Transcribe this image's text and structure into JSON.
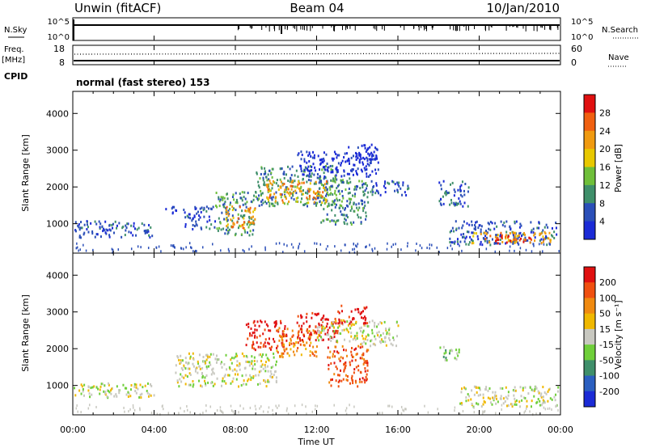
{
  "header": {
    "station": "Unwin (fitACF)",
    "beam": "Beam 04",
    "date": "10/Jan/2010"
  },
  "top_panel": {
    "nsky_label": "N.Sky",
    "nsearch_label": "N.Search",
    "left_ticks": [
      "10^5",
      "10^0"
    ],
    "right_ticks": [
      "10^5",
      "10^0"
    ]
  },
  "freq_panel": {
    "freq_label": "Freq.",
    "unit_label": "[MHz]",
    "left_ticks": [
      "18",
      "8"
    ],
    "right_ticks": [
      "60",
      "0"
    ],
    "nave_label": "Nave"
  },
  "cpid": {
    "label": "CPID",
    "text": "normal (fast stereo) 153"
  },
  "colors": {
    "power_scale": [
      "#1b2bd6",
      "#2b4fb8",
      "#3f8f6a",
      "#6fbf3a",
      "#e8c800",
      "#f09a10",
      "#f06010",
      "#e01010"
    ],
    "velocity_scale": [
      "#1b2bd6",
      "#2b5fc0",
      "#3f8f6a",
      "#6fcf3a",
      "#c8c8c0",
      "#f0b800",
      "#f08a10",
      "#f05010",
      "#e01010"
    ]
  },
  "chart_data": [
    {
      "type": "heatmap",
      "panel": "power",
      "ylabel": "Slant Range [km]",
      "ylim": [
        200,
        4600
      ],
      "yticks": [
        "1000",
        "2000",
        "3000",
        "4000"
      ],
      "xlim": [
        0,
        24
      ],
      "colorbar_label": "Power [dB]",
      "colorbar_ticks": [
        "4",
        "8",
        "12",
        "16",
        "20",
        "24",
        "28"
      ],
      "regions": [
        {
          "x": [
            0.0,
            4.0
          ],
          "y": [
            650,
            1100
          ],
          "level": 1
        },
        {
          "x": [
            4.5,
            5.5
          ],
          "y": [
            1300,
            1500
          ],
          "level": 0
        },
        {
          "x": [
            5.5,
            7.0
          ],
          "y": [
            850,
            1500
          ],
          "level": 1
        },
        {
          "x": [
            7.0,
            9.0
          ],
          "y": [
            700,
            1900
          ],
          "level": 2
        },
        {
          "x": [
            7.5,
            9.0
          ],
          "y": [
            900,
            1500
          ],
          "level": 5
        },
        {
          "x": [
            9.0,
            13.0
          ],
          "y": [
            1500,
            2600
          ],
          "level": 2
        },
        {
          "x": [
            9.5,
            12.5
          ],
          "y": [
            1600,
            2200
          ],
          "level": 5
        },
        {
          "x": [
            12.0,
            14.5
          ],
          "y": [
            1000,
            2300
          ],
          "level": 2
        },
        {
          "x": [
            11.0,
            15.0
          ],
          "y": [
            2300,
            3000
          ],
          "level": 0
        },
        {
          "x": [
            13.5,
            15.0
          ],
          "y": [
            2700,
            3200
          ],
          "level": 0
        },
        {
          "x": [
            14.5,
            16.5
          ],
          "y": [
            1800,
            2200
          ],
          "level": 1
        },
        {
          "x": [
            18.0,
            19.5
          ],
          "y": [
            1500,
            2200
          ],
          "level": 1
        },
        {
          "x": [
            18.5,
            23.8
          ],
          "y": [
            450,
            1100
          ],
          "level": 1
        },
        {
          "x": [
            19.5,
            23.5
          ],
          "y": [
            500,
            800
          ],
          "level": 5
        },
        {
          "x": [
            20.5,
            22.5
          ],
          "y": [
            500,
            700
          ],
          "level": 7
        }
      ]
    },
    {
      "type": "heatmap",
      "panel": "velocity",
      "ylabel": "Slant Range [km]",
      "xlabel": "Time UT",
      "ylim": [
        200,
        4600
      ],
      "yticks": [
        "1000",
        "2000",
        "3000",
        "4000"
      ],
      "xlim": [
        0,
        24
      ],
      "xticks": [
        "00:00",
        "04:00",
        "08:00",
        "12:00",
        "16:00",
        "20:00",
        "00:00"
      ],
      "colorbar_label": "Velocity [m s⁻¹]",
      "colorbar_ticks": [
        "200",
        "100",
        "50",
        "15",
        "-15",
        "-50",
        "-100",
        "-200"
      ],
      "regions": [
        {
          "x": [
            0.0,
            4.0
          ],
          "y": [
            700,
            1100
          ],
          "level": 4
        },
        {
          "x": [
            5.0,
            10.0
          ],
          "y": [
            1000,
            1900
          ],
          "level": 4
        },
        {
          "x": [
            8.5,
            10.5
          ],
          "y": [
            2000,
            2800
          ],
          "level": 8
        },
        {
          "x": [
            10.0,
            12.0
          ],
          "y": [
            1800,
            2600
          ],
          "level": 6
        },
        {
          "x": [
            11.0,
            13.0
          ],
          "y": [
            2200,
            3000
          ],
          "level": 8
        },
        {
          "x": [
            12.0,
            16.0
          ],
          "y": [
            2100,
            2800
          ],
          "level": 4
        },
        {
          "x": [
            12.5,
            14.5
          ],
          "y": [
            1000,
            2100
          ],
          "level": 7
        },
        {
          "x": [
            13.0,
            14.5
          ],
          "y": [
            2700,
            3200
          ],
          "level": 8
        },
        {
          "x": [
            18.0,
            19.0
          ],
          "y": [
            1700,
            2100
          ],
          "level": 3
        },
        {
          "x": [
            19.0,
            24.0
          ],
          "y": [
            450,
            1000
          ],
          "level": 4
        }
      ]
    }
  ]
}
